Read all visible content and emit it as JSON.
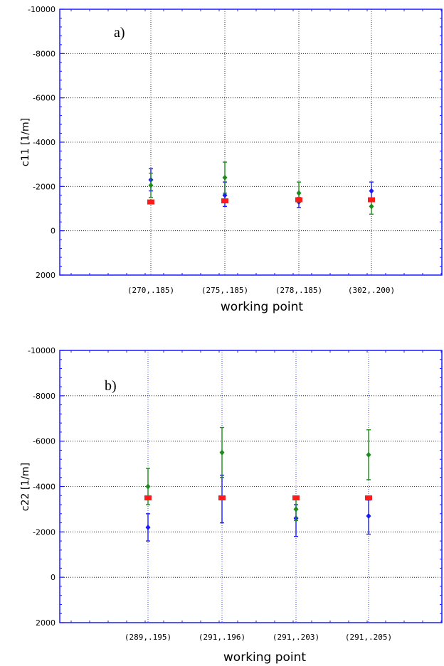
{
  "chart_data": [
    {
      "type": "scatter",
      "panel_tag": "a)",
      "ylabel": "c11  [1/m]",
      "xlabel": "working point",
      "categories": [
        "(270,.185)",
        "(275,.185)",
        "(278,.185)",
        "(302,.200)"
      ],
      "ylim": [
        2000,
        -10000
      ],
      "yticks": [
        -10000,
        -8000,
        -6000,
        -4000,
        -2000,
        0,
        2000
      ],
      "grid": true,
      "series": [
        {
          "color": "#1a1aff",
          "values": [
            -2300,
            -1600,
            -1300,
            -1800
          ],
          "err_hi": [
            -2800,
            -2200,
            -1500,
            -2200
          ],
          "err_lo": [
            -1800,
            -1100,
            -1050,
            -1400
          ]
        },
        {
          "color": "#1a8c1a",
          "values": [
            -2050,
            -2400,
            -1700,
            -1100
          ],
          "err_hi": [
            -2600,
            -3100,
            -2200,
            -1400
          ],
          "err_lo": [
            -1500,
            -1700,
            -1300,
            -750
          ]
        },
        {
          "color": "#ff1a1a",
          "values": [
            -1300,
            -1350,
            -1400,
            -1400
          ],
          "err_hi": [
            -1300,
            -1350,
            -1400,
            -1400
          ],
          "err_lo": [
            -1300,
            -1350,
            -1400,
            -1400
          ]
        }
      ]
    },
    {
      "type": "scatter",
      "panel_tag": "b)",
      "ylabel": "c22  [1/m]",
      "xlabel": "working point",
      "categories": [
        "(289,.195)",
        "(291,.196)",
        "(291,.203)",
        "(291,.205)"
      ],
      "ylim": [
        2000,
        -10000
      ],
      "yticks": [
        -10000,
        -8000,
        -6000,
        -4000,
        -2000,
        0,
        2000
      ],
      "grid": true,
      "series": [
        {
          "color": "#1a1aff",
          "values": [
            -2200,
            -3500,
            -2600,
            -2700
          ],
          "err_hi": [
            -2800,
            -4500,
            -3200,
            -3400
          ],
          "err_lo": [
            -1600,
            -2400,
            -1800,
            -1900
          ]
        },
        {
          "color": "#1a8c1a",
          "values": [
            -4000,
            -5500,
            -3000,
            -5400
          ],
          "err_hi": [
            -4800,
            -6600,
            -3500,
            -6500
          ],
          "err_lo": [
            -3200,
            -4400,
            -2500,
            -4300
          ]
        },
        {
          "color": "#ff1a1a",
          "values": [
            -3500,
            -3500,
            -3500,
            -3500
          ],
          "err_hi": [
            -3500,
            -3500,
            -3500,
            -3500
          ],
          "err_lo": [
            -3500,
            -3500,
            -3500,
            -3500
          ]
        }
      ]
    }
  ]
}
